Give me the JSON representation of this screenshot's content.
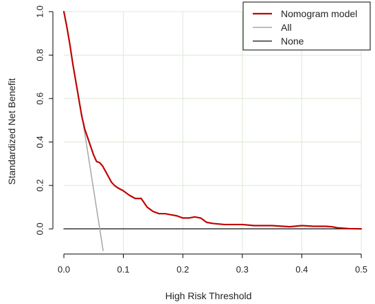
{
  "chart_data": {
    "type": "line",
    "title": "",
    "xlabel": "High Risk Threshold",
    "ylabel": "Standardized Net Benefit",
    "xlim": [
      0.0,
      0.5
    ],
    "ylim": [
      -0.1,
      1.0
    ],
    "x_ticks": [
      0.0,
      0.1,
      0.2,
      0.3,
      0.4,
      0.5
    ],
    "y_ticks": [
      0.0,
      0.2,
      0.4,
      0.6,
      0.8,
      1.0
    ],
    "x_tick_labels": [
      "0.0",
      "0.1",
      "0.2",
      "0.3",
      "0.4",
      "0.5"
    ],
    "y_tick_labels": [
      "0.0",
      "0.2",
      "0.4",
      "0.6",
      "0.8",
      "1.0"
    ],
    "grid": true,
    "legend_position": "top-right",
    "series": [
      {
        "name": "Nomogram model",
        "color": "#c00000",
        "x": [
          0.0,
          0.005,
          0.01,
          0.015,
          0.02,
          0.025,
          0.03,
          0.035,
          0.04,
          0.045,
          0.05,
          0.055,
          0.06,
          0.065,
          0.07,
          0.075,
          0.08,
          0.085,
          0.09,
          0.1,
          0.11,
          0.12,
          0.13,
          0.14,
          0.15,
          0.16,
          0.17,
          0.18,
          0.19,
          0.2,
          0.21,
          0.22,
          0.23,
          0.24,
          0.25,
          0.27,
          0.3,
          0.32,
          0.35,
          0.38,
          0.4,
          0.42,
          0.44,
          0.45,
          0.46,
          0.47,
          0.48,
          0.5
        ],
        "y": [
          1.0,
          0.93,
          0.85,
          0.76,
          0.68,
          0.6,
          0.52,
          0.46,
          0.42,
          0.38,
          0.34,
          0.31,
          0.305,
          0.29,
          0.265,
          0.24,
          0.215,
          0.2,
          0.19,
          0.175,
          0.155,
          0.14,
          0.14,
          0.1,
          0.08,
          0.07,
          0.07,
          0.065,
          0.06,
          0.05,
          0.05,
          0.055,
          0.05,
          0.03,
          0.025,
          0.02,
          0.02,
          0.015,
          0.015,
          0.01,
          0.015,
          0.012,
          0.012,
          0.01,
          0.005,
          0.003,
          0.001,
          0.0
        ]
      },
      {
        "name": "All",
        "color": "#a6a6a6",
        "x": [
          0.03,
          0.066
        ],
        "y": [
          0.53,
          -0.1
        ]
      },
      {
        "name": "None",
        "color": "#333333",
        "x": [
          0.0,
          0.5
        ],
        "y": [
          0.0,
          0.0
        ]
      }
    ]
  }
}
